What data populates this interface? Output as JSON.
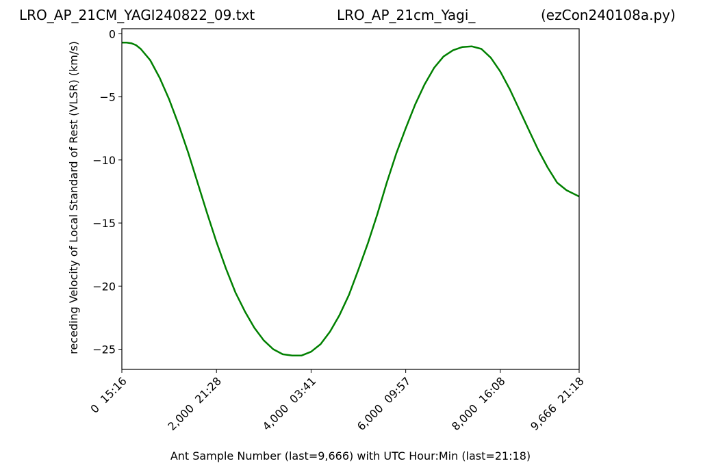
{
  "titles": {
    "left": "LRO_AP_21CM_YAGI240822_09.txt",
    "center": "LRO_AP_21cm_Yagi_",
    "right": "(ezCon240108a.py)"
  },
  "chart_data": {
    "type": "line",
    "xlabel": "Ant Sample Number (last=9,666) with UTC Hour:Min (last=21:18)",
    "ylabel": "receding Velocity of Local Standard of Rest (VLSR) (km/s)",
    "xlim": [
      0,
      9666
    ],
    "ylim": [
      -26.6,
      0.4
    ],
    "x_ticks": [
      {
        "value": 0,
        "label": "0  15:16"
      },
      {
        "value": 2000,
        "label": "2,000  21:28"
      },
      {
        "value": 4000,
        "label": "4,000  03:41"
      },
      {
        "value": 6000,
        "label": "6,000  09:57"
      },
      {
        "value": 8000,
        "label": "8,000  16:08"
      },
      {
        "value": 9666,
        "label": "9,666  21:18"
      }
    ],
    "y_ticks": [
      {
        "value": 0,
        "label": "0"
      },
      {
        "value": -5,
        "label": "−5"
      },
      {
        "value": -10,
        "label": "−10"
      },
      {
        "value": -15,
        "label": "−15"
      },
      {
        "value": -20,
        "label": "−20"
      },
      {
        "value": -25,
        "label": "−25"
      }
    ],
    "grid": false,
    "series": [
      {
        "color": "#008000",
        "points": [
          [
            0,
            -0.7
          ],
          [
            100,
            -0.7
          ],
          [
            200,
            -0.75
          ],
          [
            300,
            -0.9
          ],
          [
            400,
            -1.2
          ],
          [
            600,
            -2.1
          ],
          [
            800,
            -3.5
          ],
          [
            1000,
            -5.2
          ],
          [
            1200,
            -7.2
          ],
          [
            1400,
            -9.4
          ],
          [
            1600,
            -11.8
          ],
          [
            1800,
            -14.2
          ],
          [
            2000,
            -16.5
          ],
          [
            2200,
            -18.6
          ],
          [
            2400,
            -20.5
          ],
          [
            2600,
            -22.0
          ],
          [
            2800,
            -23.3
          ],
          [
            3000,
            -24.3
          ],
          [
            3200,
            -25.0
          ],
          [
            3400,
            -25.4
          ],
          [
            3600,
            -25.5
          ],
          [
            3800,
            -25.5
          ],
          [
            4000,
            -25.2
          ],
          [
            4200,
            -24.6
          ],
          [
            4400,
            -23.6
          ],
          [
            4600,
            -22.3
          ],
          [
            4800,
            -20.7
          ],
          [
            5000,
            -18.7
          ],
          [
            5200,
            -16.6
          ],
          [
            5400,
            -14.3
          ],
          [
            5600,
            -11.8
          ],
          [
            5800,
            -9.5
          ],
          [
            6000,
            -7.5
          ],
          [
            6200,
            -5.6
          ],
          [
            6400,
            -4.0
          ],
          [
            6600,
            -2.7
          ],
          [
            6800,
            -1.8
          ],
          [
            7000,
            -1.3
          ],
          [
            7200,
            -1.05
          ],
          [
            7400,
            -1.0
          ],
          [
            7600,
            -1.2
          ],
          [
            7800,
            -1.9
          ],
          [
            8000,
            -3.0
          ],
          [
            8200,
            -4.4
          ],
          [
            8400,
            -6.0
          ],
          [
            8600,
            -7.6
          ],
          [
            8800,
            -9.2
          ],
          [
            9000,
            -10.6
          ],
          [
            9200,
            -11.8
          ],
          [
            9400,
            -12.4
          ],
          [
            9666,
            -12.9
          ]
        ]
      }
    ]
  }
}
